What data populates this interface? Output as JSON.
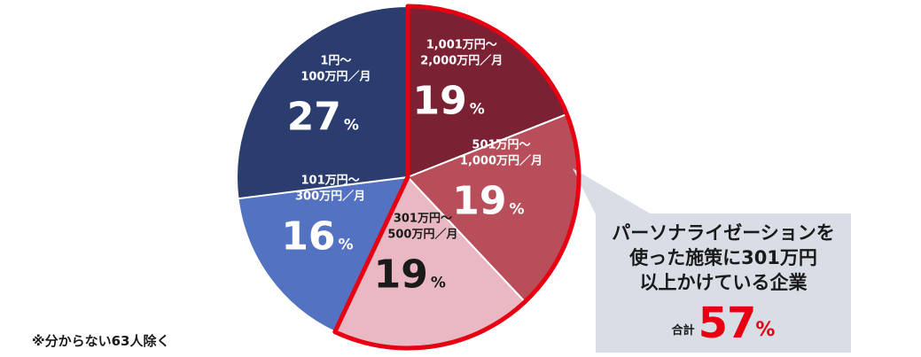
{
  "chart_data": {
    "type": "pie",
    "title": "",
    "slices": [
      {
        "label_line1": "1,001万円～",
        "label_line2": "2,000万円／月",
        "value": 19,
        "unit": "%",
        "color": "#7a2134",
        "text": "light"
      },
      {
        "label_line1": "501万円～",
        "label_line2": "1,000万円／月",
        "value": 19,
        "unit": "%",
        "color": "#b84e59",
        "text": "light"
      },
      {
        "label_line1": "301万円～",
        "label_line2": "500万円／月",
        "value": 19,
        "unit": "%",
        "color": "#e9b8c3",
        "text": "dark"
      },
      {
        "label_line1": "101万円～",
        "label_line2": "300万円／月",
        "value": 16,
        "unit": "%",
        "color": "#5472c2",
        "text": "light"
      },
      {
        "label_line1": "1円～",
        "label_line2": "100万円／月",
        "value": 27,
        "unit": "%",
        "color": "#2b3d6f",
        "text": "light"
      }
    ],
    "start_angle_deg": 0,
    "direction": "clockwise",
    "highlight_outline_color": "#e60012",
    "highlight_slices": [
      0,
      1,
      2
    ]
  },
  "callout": {
    "line1": "パーソナライゼーションを",
    "line2": "使った施策に301万円",
    "line3": "以上かけている企業",
    "total_label": "合計",
    "total_value": "57",
    "total_unit": "%",
    "bg_color": "#d9dde6"
  },
  "footnote": "※分からない63人除く"
}
